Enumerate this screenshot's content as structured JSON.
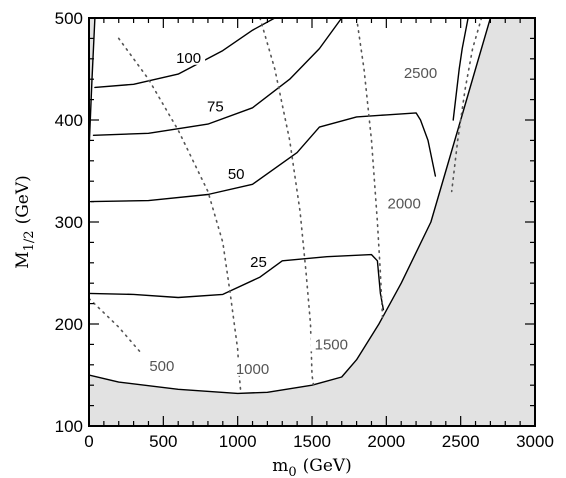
{
  "chart_data": {
    "type": "line",
    "xlabel": "m",
    "xlabel_sub": "0",
    "xlabel_unit": "(GeV)",
    "ylabel": "M",
    "ylabel_sub": "1/2",
    "ylabel_unit": "(GeV)",
    "xlim": [
      0,
      3000
    ],
    "ylim": [
      100,
      500
    ],
    "x_ticks": [
      0,
      500,
      1000,
      1500,
      2000,
      2500,
      3000
    ],
    "y_ticks": [
      100,
      200,
      300,
      400,
      500
    ],
    "x_tick_labels": [
      "0",
      "500",
      "1000",
      "1500",
      "2000",
      "2500",
      "3000"
    ],
    "y_tick_labels": [
      "100",
      "200",
      "300",
      "400",
      "500"
    ],
    "shaded_regions": [
      {
        "color": "#e2e2e2",
        "points": [
          [
            0,
            100
          ],
          [
            0,
            150
          ],
          [
            200,
            143
          ],
          [
            600,
            136
          ],
          [
            1000,
            132
          ],
          [
            1200,
            133
          ],
          [
            1500,
            140
          ],
          [
            1700,
            148
          ],
          [
            1800,
            165
          ],
          [
            1950,
            200
          ],
          [
            2100,
            240
          ],
          [
            2300,
            300
          ],
          [
            2400,
            350
          ],
          [
            2500,
            400
          ],
          [
            2600,
            450
          ],
          [
            2700,
            500
          ],
          [
            3000,
            500
          ],
          [
            3000,
            100
          ]
        ]
      },
      {
        "color": "#e2e2e2",
        "points": [
          [
            0,
            500
          ],
          [
            0,
            370
          ],
          [
            20,
            440
          ],
          [
            40,
            500
          ]
        ]
      }
    ],
    "boundary_lines": [
      {
        "points": [
          [
            0,
            150
          ],
          [
            200,
            143
          ],
          [
            600,
            136
          ],
          [
            1000,
            132
          ],
          [
            1200,
            133
          ],
          [
            1500,
            140
          ],
          [
            1700,
            148
          ],
          [
            1800,
            165
          ],
          [
            1950,
            200
          ],
          [
            2100,
            240
          ],
          [
            2300,
            300
          ],
          [
            2400,
            350
          ],
          [
            2500,
            400
          ],
          [
            2600,
            450
          ],
          [
            2700,
            500
          ]
        ]
      },
      {
        "points": [
          [
            0,
            370
          ],
          [
            20,
            440
          ],
          [
            40,
            500
          ]
        ]
      }
    ],
    "series": [
      {
        "name": "100",
        "style": "solid",
        "label_x": 670,
        "label_y": 461,
        "points": [
          [
            40,
            432
          ],
          [
            300,
            435
          ],
          [
            600,
            445
          ],
          [
            900,
            468
          ],
          [
            1100,
            488
          ],
          [
            1250,
            500
          ]
        ]
      },
      {
        "name": "75",
        "style": "solid",
        "label_x": 850,
        "label_y": 413,
        "points": [
          [
            30,
            385
          ],
          [
            400,
            387
          ],
          [
            800,
            396
          ],
          [
            1100,
            412
          ],
          [
            1350,
            440
          ],
          [
            1550,
            470
          ],
          [
            1700,
            500
          ]
        ]
      },
      {
        "name": "50",
        "style": "solid",
        "label_x": 990,
        "label_y": 347,
        "points": [
          [
            15,
            320
          ],
          [
            400,
            321
          ],
          [
            800,
            327
          ],
          [
            1100,
            337
          ],
          [
            1400,
            368
          ],
          [
            1550,
            393
          ],
          [
            1800,
            403
          ],
          [
            2000,
            405
          ],
          [
            2200,
            407
          ],
          [
            2230,
            400
          ],
          [
            2280,
            380
          ],
          [
            2330,
            345
          ]
        ]
      },
      {
        "name": "25",
        "style": "solid",
        "label_x": 1140,
        "label_y": 261,
        "points": [
          [
            0,
            230
          ],
          [
            300,
            229
          ],
          [
            600,
            226
          ],
          [
            900,
            229
          ],
          [
            1150,
            246
          ],
          [
            1300,
            262
          ],
          [
            1600,
            266
          ],
          [
            1900,
            268
          ],
          [
            1940,
            262
          ],
          [
            1960,
            230
          ],
          [
            1980,
            214
          ]
        ]
      },
      {
        "name": "",
        "style": "solid",
        "points": [
          [
            2550,
            500
          ],
          [
            2510,
            470
          ],
          [
            2490,
            450
          ],
          [
            2470,
            425
          ],
          [
            2450,
            400
          ]
        ]
      },
      {
        "name": "500",
        "style": "dotted",
        "label_x": 490,
        "label_y": 159,
        "points": [
          [
            0,
            225
          ],
          [
            100,
            211
          ],
          [
            200,
            197
          ],
          [
            300,
            180
          ],
          [
            360,
            170
          ]
        ]
      },
      {
        "name": "1000",
        "style": "dotted",
        "label_x": 1100,
        "label_y": 156,
        "points": [
          [
            200,
            480
          ],
          [
            400,
            440
          ],
          [
            600,
            390
          ],
          [
            800,
            330
          ],
          [
            900,
            280
          ],
          [
            950,
            230
          ],
          [
            1000,
            175
          ],
          [
            1010,
            150
          ],
          [
            1020,
            135
          ]
        ]
      },
      {
        "name": "1500",
        "style": "dotted",
        "label_x": 1630,
        "label_y": 180,
        "points": [
          [
            1150,
            500
          ],
          [
            1250,
            450
          ],
          [
            1350,
            380
          ],
          [
            1420,
            310
          ],
          [
            1460,
            250
          ],
          [
            1490,
            200
          ],
          [
            1500,
            150
          ],
          [
            1510,
            140
          ]
        ]
      },
      {
        "name": "2000",
        "style": "dotted",
        "label_x": 2120,
        "label_y": 318,
        "points": [
          [
            1800,
            500
          ],
          [
            1850,
            450
          ],
          [
            1900,
            380
          ],
          [
            1940,
            300
          ],
          [
            1960,
            250
          ],
          [
            1975,
            205
          ]
        ]
      },
      {
        "name": "2500",
        "style": "dotted",
        "label_x": 2230,
        "label_y": 446,
        "points": [
          [
            2640,
            500
          ],
          [
            2580,
            470
          ],
          [
            2530,
            430
          ],
          [
            2480,
            380
          ],
          [
            2440,
            330
          ]
        ]
      }
    ]
  }
}
